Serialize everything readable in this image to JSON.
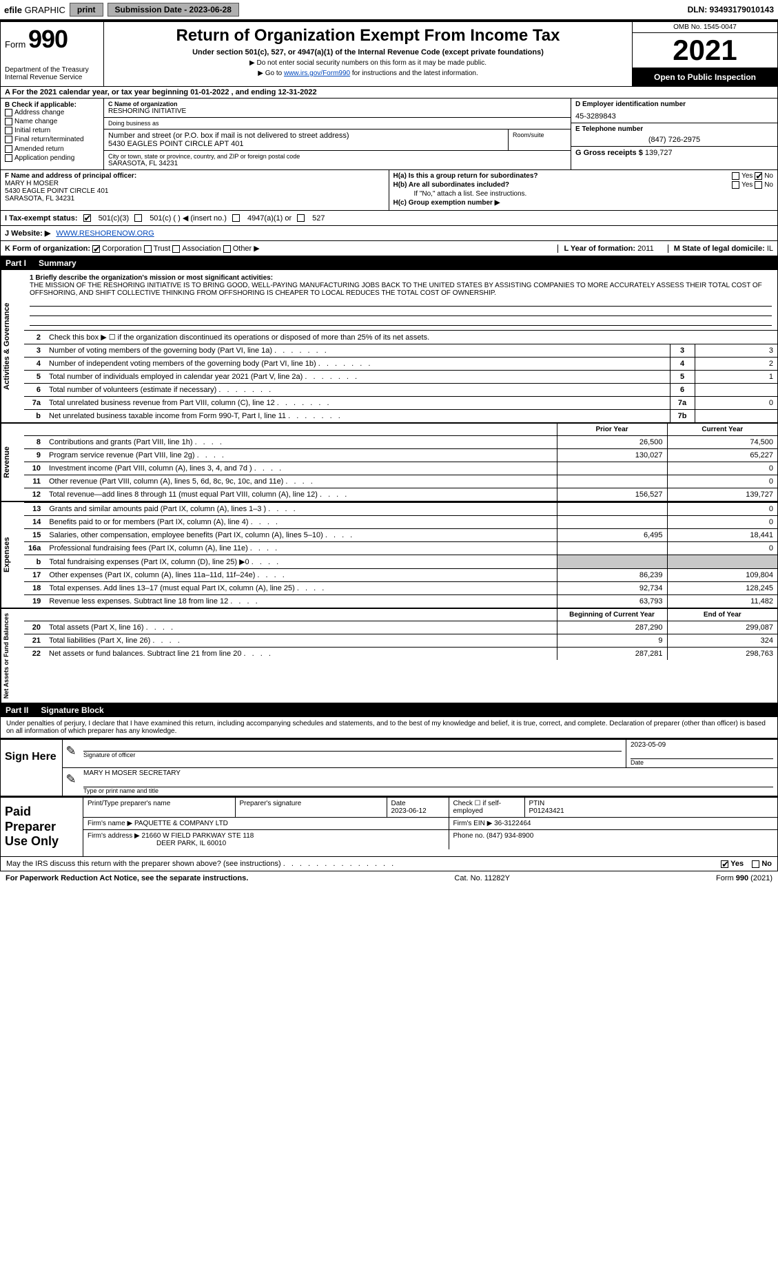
{
  "colors": {
    "link": "#0047bb",
    "shade": "#c8c8c8",
    "black": "#000000",
    "white": "#ffffff",
    "btn_bg": "#b0b0b0"
  },
  "topbar": {
    "efile_prefix": "efile",
    "efile_suffix": " GRAPHIC",
    "print_btn": "print",
    "submission_label": "Submission Date - 2023-06-28",
    "dln": "DLN: 93493179010143"
  },
  "header": {
    "form_label": "Form",
    "form_number": "990",
    "dept": "Department of the Treasury",
    "irs": "Internal Revenue Service",
    "title": "Return of Organization Exempt From Income Tax",
    "subtitle": "Under section 501(c), 527, or 4947(a)(1) of the Internal Revenue Code (except private foundations)",
    "note1": "▶ Do not enter social security numbers on this form as it may be made public.",
    "note2_pre": "▶ Go to ",
    "note2_link": "www.irs.gov/Form990",
    "note2_post": " for instructions and the latest information.",
    "omb": "OMB No. 1545-0047",
    "year": "2021",
    "open": "Open to Public Inspection"
  },
  "rowA": {
    "text": "A For the 2021 calendar year, or tax year beginning 01-01-2022   , and ending 12-31-2022"
  },
  "boxB": {
    "label": "B Check if applicable:",
    "items": [
      "Address change",
      "Name change",
      "Initial return",
      "Final return/terminated",
      "Amended return",
      "Application pending"
    ]
  },
  "boxC": {
    "name_lbl": "C Name of organization",
    "name": "RESHORING INITIATIVE",
    "dba_lbl": "Doing business as",
    "dba": "",
    "street_lbl": "Number and street (or P.O. box if mail is not delivered to street address)",
    "room_lbl": "Room/suite",
    "street": "5430 EAGLES POINT CIRCLE APT 401",
    "city_lbl": "City or town, state or province, country, and ZIP or foreign postal code",
    "city": "SARASOTA, FL  34231"
  },
  "boxDE": {
    "d_lbl": "D Employer identification number",
    "d_val": "45-3289843",
    "e_lbl": "E Telephone number",
    "e_val": "(847) 726-2975",
    "g_lbl": "G Gross receipts $",
    "g_val": "139,727"
  },
  "boxF": {
    "lbl": "F Name and address of principal officer:",
    "name": "MARY H MOSER",
    "addr1": "5430 EAGLE POINT CIRCLE 401",
    "addr2": "SARASOTA, FL  34231"
  },
  "boxH": {
    "a": "H(a)  Is this a group return for subordinates?",
    "a_yes": "Yes",
    "a_no": "No",
    "b": "H(b)  Are all subordinates included?",
    "b_yes": "Yes",
    "b_no": "No",
    "b_note": "If \"No,\" attach a list. See instructions.",
    "c": "H(c)  Group exemption number ▶"
  },
  "rowI": {
    "lbl": "I  Tax-exempt status:",
    "o1": "501(c)(3)",
    "o2": "501(c) (   ) ◀ (insert no.)",
    "o3": "4947(a)(1) or",
    "o4": "527"
  },
  "rowJ": {
    "lbl": "J  Website: ▶",
    "val": "WWW.RESHORENOW.ORG"
  },
  "rowK": {
    "lbl": "K Form of organization:",
    "o1": "Corporation",
    "o2": "Trust",
    "o3": "Association",
    "o4": "Other ▶",
    "l_lbl": "L Year of formation:",
    "l_val": "2011",
    "m_lbl": "M State of legal domicile:",
    "m_val": "IL"
  },
  "part1": {
    "hdr_part": "Part I",
    "hdr_title": "Summary",
    "sections": {
      "gov": "Activities & Governance",
      "rev": "Revenue",
      "exp": "Expenses",
      "net": "Net Assets or Fund Balances"
    },
    "mission_lbl": "1   Briefly describe the organization's mission or most significant activities:",
    "mission": "THE MISSION OF THE RESHORING INITIATIVE IS TO BRING GOOD, WELL-PAYING MANUFACTURING JOBS BACK TO THE UNITED STATES BY ASSISTING COMPANIES TO MORE ACCURATELY ASSESS THEIR TOTAL COST OF OFFSHORING, AND SHIFT COLLECTIVE THINKING FROM OFFSHORING IS CHEAPER TO LOCAL REDUCES THE TOTAL COST OF OWNERSHIP.",
    "line2": "Check this box ▶ ☐  if the organization discontinued its operations or disposed of more than 25% of its net assets.",
    "lines_gov": [
      {
        "n": "3",
        "d": "Number of voting members of the governing body (Part VI, line 1a)",
        "box": "3",
        "v": "3"
      },
      {
        "n": "4",
        "d": "Number of independent voting members of the governing body (Part VI, line 1b)",
        "box": "4",
        "v": "2"
      },
      {
        "n": "5",
        "d": "Total number of individuals employed in calendar year 2021 (Part V, line 2a)",
        "box": "5",
        "v": "1"
      },
      {
        "n": "6",
        "d": "Total number of volunteers (estimate if necessary)",
        "box": "6",
        "v": ""
      },
      {
        "n": "7a",
        "d": "Total unrelated business revenue from Part VIII, column (C), line 12",
        "box": "7a",
        "v": "0"
      },
      {
        "n": "b",
        "d": "Net unrelated business taxable income from Form 990-T, Part I, line 11",
        "box": "7b",
        "v": ""
      }
    ],
    "col_prior": "Prior Year",
    "col_current": "Current Year",
    "col_boy": "Beginning of Current Year",
    "col_eoy": "End of Year",
    "lines_rev": [
      {
        "n": "8",
        "d": "Contributions and grants (Part VIII, line 1h)",
        "pv": "26,500",
        "cv": "74,500"
      },
      {
        "n": "9",
        "d": "Program service revenue (Part VIII, line 2g)",
        "pv": "130,027",
        "cv": "65,227"
      },
      {
        "n": "10",
        "d": "Investment income (Part VIII, column (A), lines 3, 4, and 7d )",
        "pv": "",
        "cv": "0"
      },
      {
        "n": "11",
        "d": "Other revenue (Part VIII, column (A), lines 5, 6d, 8c, 9c, 10c, and 11e)",
        "pv": "",
        "cv": "0"
      },
      {
        "n": "12",
        "d": "Total revenue—add lines 8 through 11 (must equal Part VIII, column (A), line 12)",
        "pv": "156,527",
        "cv": "139,727"
      }
    ],
    "lines_exp": [
      {
        "n": "13",
        "d": "Grants and similar amounts paid (Part IX, column (A), lines 1–3 )",
        "pv": "",
        "cv": "0"
      },
      {
        "n": "14",
        "d": "Benefits paid to or for members (Part IX, column (A), line 4)",
        "pv": "",
        "cv": "0"
      },
      {
        "n": "15",
        "d": "Salaries, other compensation, employee benefits (Part IX, column (A), lines 5–10)",
        "pv": "6,495",
        "cv": "18,441"
      },
      {
        "n": "16a",
        "d": "Professional fundraising fees (Part IX, column (A), line 11e)",
        "pv": "",
        "cv": "0"
      },
      {
        "n": "b",
        "d": "Total fundraising expenses (Part IX, column (D), line 25) ▶0",
        "pv": "SHADE",
        "cv": "SHADE"
      },
      {
        "n": "17",
        "d": "Other expenses (Part IX, column (A), lines 11a–11d, 11f–24e)",
        "pv": "86,239",
        "cv": "109,804"
      },
      {
        "n": "18",
        "d": "Total expenses. Add lines 13–17 (must equal Part IX, column (A), line 25)",
        "pv": "92,734",
        "cv": "128,245"
      },
      {
        "n": "19",
        "d": "Revenue less expenses. Subtract line 18 from line 12",
        "pv": "63,793",
        "cv": "11,482"
      }
    ],
    "lines_net": [
      {
        "n": "20",
        "d": "Total assets (Part X, line 16)",
        "pv": "287,290",
        "cv": "299,087"
      },
      {
        "n": "21",
        "d": "Total liabilities (Part X, line 26)",
        "pv": "9",
        "cv": "324"
      },
      {
        "n": "22",
        "d": "Net assets or fund balances. Subtract line 21 from line 20",
        "pv": "287,281",
        "cv": "298,763"
      }
    ]
  },
  "part2": {
    "hdr_part": "Part II",
    "hdr_title": "Signature Block",
    "penalty": "Under penalties of perjury, I declare that I have examined this return, including accompanying schedules and statements, and to the best of my knowledge and belief, it is true, correct, and complete. Declaration of preparer (other than officer) is based on all information of which preparer has any knowledge."
  },
  "sign": {
    "label": "Sign Here",
    "sig_lbl": "Signature of officer",
    "date_lbl": "Date",
    "date_val": "2023-05-09",
    "name": "MARY H MOSER  SECRETARY",
    "name_lbl": "Type or print name and title"
  },
  "prep": {
    "label": "Paid Preparer Use Only",
    "r1": {
      "c1_lbl": "Print/Type preparer's name",
      "c1": "",
      "c2_lbl": "Preparer's signature",
      "c2": "",
      "c3_lbl": "Date",
      "c3": "2023-06-12",
      "c4_lbl": "Check ☐ if self-employed",
      "c5_lbl": "PTIN",
      "c5": "P01243421"
    },
    "r2": {
      "lbl": "Firm's name    ▶",
      "val": "PAQUETTE & COMPANY LTD",
      "ein_lbl": "Firm's EIN ▶",
      "ein": "36-3122464"
    },
    "r3": {
      "lbl": "Firm's address ▶",
      "val1": "21660 W FIELD PARKWAY STE 118",
      "val2": "DEER PARK, IL  60010",
      "ph_lbl": "Phone no.",
      "ph": "(847) 934-8900"
    }
  },
  "discuss": {
    "q": "May the IRS discuss this return with the preparer shown above? (see instructions)",
    "yes": "Yes",
    "no": "No"
  },
  "footer": {
    "left": "For Paperwork Reduction Act Notice, see the separate instructions.",
    "mid": "Cat. No. 11282Y",
    "right": "Form 990 (2021)"
  }
}
